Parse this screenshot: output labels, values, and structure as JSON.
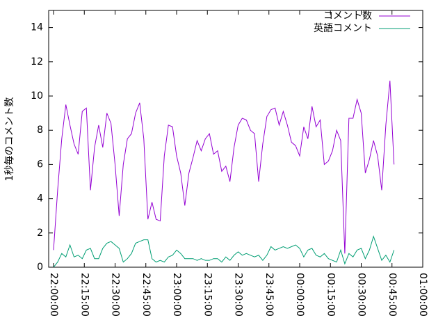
{
  "chart_data": {
    "type": "line",
    "ylabel": "1秒毎のコメント数",
    "x": [
      "22:00:00",
      "22:02:00",
      "22:04:00",
      "22:06:00",
      "22:08:00",
      "22:10:00",
      "22:12:00",
      "22:14:00",
      "22:16:00",
      "22:18:00",
      "22:20:00",
      "22:22:00",
      "22:24:00",
      "22:26:00",
      "22:28:00",
      "22:30:00",
      "22:32:00",
      "22:34:00",
      "22:36:00",
      "22:38:00",
      "22:40:00",
      "22:42:00",
      "22:44:00",
      "22:46:00",
      "22:48:00",
      "22:50:00",
      "22:52:00",
      "22:54:00",
      "22:56:00",
      "22:58:00",
      "23:00:00",
      "23:02:00",
      "23:04:00",
      "23:06:00",
      "23:08:00",
      "23:10:00",
      "23:12:00",
      "23:14:00",
      "23:16:00",
      "23:18:00",
      "23:20:00",
      "23:22:00",
      "23:24:00",
      "23:26:00",
      "23:28:00",
      "23:30:00",
      "23:32:00",
      "23:34:00",
      "23:36:00",
      "23:38:00",
      "23:40:00",
      "23:42:00",
      "23:44:00",
      "23:46:00",
      "23:48:00",
      "23:50:00",
      "23:52:00",
      "23:54:00",
      "23:56:00",
      "23:58:00",
      "00:00:00",
      "00:02:00",
      "00:04:00",
      "00:06:00",
      "00:08:00",
      "00:10:00",
      "00:12:00",
      "00:14:00",
      "00:16:00",
      "00:18:00",
      "00:20:00",
      "00:22:00",
      "00:24:00",
      "00:26:00",
      "00:28:00",
      "00:30:00",
      "00:32:00",
      "00:34:00",
      "00:36:00",
      "00:38:00",
      "00:40:00",
      "00:42:00",
      "00:44:00",
      "00:46:00"
    ],
    "series": [
      {
        "name": "コメント数",
        "color": "#9400d3",
        "values": [
          1,
          4.5,
          7.5,
          9.5,
          8.3,
          7.2,
          6.6,
          9.1,
          9.3,
          4.5,
          7,
          8.3,
          7,
          9,
          8.4,
          6,
          3,
          6,
          7.5,
          7.8,
          9,
          9.6,
          7.5,
          2.8,
          3.8,
          2.8,
          2.7,
          6.5,
          8.3,
          8.2,
          6.5,
          5.5,
          3.6,
          5.5,
          6.4,
          7.4,
          6.8,
          7.5,
          7.8,
          6.6,
          6.8,
          5.6,
          5.9,
          5,
          7,
          8.3,
          8.7,
          8.6,
          8,
          7.8,
          5,
          7.2,
          8.8,
          9.2,
          9.3,
          8.3,
          9.1,
          8.3,
          7.3,
          7.1,
          6.5,
          8.2,
          7.5,
          9.4,
          8.2,
          8.6,
          6,
          6.2,
          6.8,
          8,
          7.4,
          0.8,
          8.7,
          8.7,
          9.8,
          9,
          5.5,
          6.3,
          7.4,
          6.5,
          4.5,
          8.3,
          10.9,
          6
        ]
      },
      {
        "name": "英語コメント",
        "color": "#009e73",
        "values": [
          0,
          0.3,
          0.8,
          0.6,
          1.3,
          0.6,
          0.7,
          0.5,
          1,
          1.1,
          0.5,
          0.5,
          1.1,
          1.4,
          1.5,
          1.3,
          1.1,
          0.3,
          0.5,
          0.8,
          1.4,
          1.5,
          1.6,
          1.6,
          0.5,
          0.3,
          0.4,
          0.3,
          0.6,
          0.7,
          1,
          0.8,
          0.5,
          0.5,
          0.5,
          0.4,
          0.5,
          0.4,
          0.4,
          0.5,
          0.5,
          0.3,
          0.6,
          0.4,
          0.7,
          0.9,
          0.7,
          0.8,
          0.7,
          0.6,
          0.7,
          0.4,
          0.7,
          1.2,
          1,
          1.1,
          1.2,
          1.1,
          1.2,
          1.3,
          1.1,
          0.6,
          1,
          1.1,
          0.7,
          0.6,
          0.8,
          0.5,
          0.4,
          0.3,
          1,
          0.2,
          0.8,
          0.6,
          1,
          1.1,
          0.5,
          1,
          1.8,
          1.1,
          0.4,
          0.7,
          0.3,
          1
        ]
      }
    ],
    "xlim": [
      "22:00:00",
      "01:00:00"
    ],
    "xticks": [
      "22:00:00",
      "22:15:00",
      "22:30:00",
      "22:45:00",
      "23:00:00",
      "23:15:00",
      "23:30:00",
      "23:45:00",
      "00:00:00",
      "00:15:00",
      "00:30:00",
      "00:45:00",
      "01:00:00"
    ],
    "ylim": [
      0,
      15
    ],
    "yticks": [
      0,
      2,
      4,
      6,
      8,
      10,
      12,
      14
    ],
    "legend": "top-right"
  }
}
